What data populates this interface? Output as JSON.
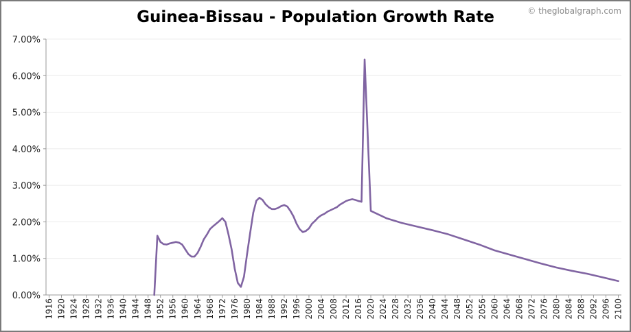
{
  "chart_data": {
    "type": "line",
    "title": "Guinea-Bissau - Population Growth Rate",
    "credit": "© theglobalgraph.com",
    "xlabel": "",
    "ylabel": "",
    "xlim": [
      1915,
      2101
    ],
    "ylim": [
      0,
      7
    ],
    "y_ticks": [
      "0.00%",
      "1.00%",
      "2.00%",
      "3.00%",
      "4.00%",
      "5.00%",
      "6.00%",
      "7.00%"
    ],
    "x_ticks": [
      "1916",
      "1920",
      "1924",
      "1928",
      "1932",
      "1936",
      "1940",
      "1944",
      "1948",
      "1952",
      "1956",
      "1960",
      "1964",
      "1968",
      "1972",
      "1976",
      "1980",
      "1984",
      "1988",
      "1992",
      "1996",
      "2000",
      "2004",
      "2008",
      "2012",
      "2016",
      "2020",
      "2024",
      "2028",
      "2032",
      "2036",
      "2040",
      "2044",
      "2048",
      "2052",
      "2056",
      "2060",
      "2064",
      "2068",
      "2072",
      "2076",
      "2080",
      "2084",
      "2088",
      "2092",
      "2096",
      "2100"
    ],
    "grid": true,
    "line_color": "#8064a2",
    "series": [
      {
        "x": [
          1950,
          1951,
          1952,
          1953,
          1954,
          1955,
          1956,
          1957,
          1958,
          1959,
          1960,
          1961,
          1962,
          1963,
          1964,
          1965,
          1966,
          1967,
          1968,
          1969,
          1970,
          1971,
          1972,
          1973,
          1974,
          1975,
          1976,
          1977,
          1978,
          1979,
          1980,
          1981,
          1982,
          1983,
          1984,
          1985,
          1986,
          1987,
          1988,
          1989,
          1990,
          1991,
          1992,
          1993,
          1994,
          1995,
          1996,
          1997,
          1998,
          1999,
          2000,
          2001,
          2002,
          2003,
          2004,
          2005,
          2006,
          2007,
          2008,
          2009,
          2010,
          2011,
          2012,
          2013,
          2014,
          2015,
          2016,
          2017,
          2018,
          2020,
          2025,
          2030,
          2035,
          2040,
          2045,
          2050,
          2055,
          2060,
          2065,
          2070,
          2075,
          2080,
          2085,
          2090,
          2095,
          2100
        ],
        "y": [
          0.0,
          1.62,
          1.45,
          1.39,
          1.38,
          1.41,
          1.43,
          1.45,
          1.43,
          1.38,
          1.25,
          1.12,
          1.05,
          1.05,
          1.15,
          1.32,
          1.52,
          1.65,
          1.8,
          1.88,
          1.95,
          2.02,
          2.1,
          2.0,
          1.65,
          1.25,
          0.72,
          0.33,
          0.22,
          0.5,
          1.12,
          1.7,
          2.25,
          2.58,
          2.66,
          2.6,
          2.48,
          2.4,
          2.35,
          2.35,
          2.38,
          2.43,
          2.46,
          2.42,
          2.3,
          2.15,
          1.95,
          1.8,
          1.72,
          1.75,
          1.82,
          1.95,
          2.03,
          2.12,
          2.18,
          2.22,
          2.28,
          2.32,
          2.36,
          2.4,
          2.47,
          2.52,
          2.57,
          2.6,
          2.62,
          2.6,
          2.57,
          2.55,
          6.44,
          2.3,
          2.1,
          1.97,
          1.87,
          1.77,
          1.66,
          1.52,
          1.38,
          1.22,
          1.1,
          0.98,
          0.86,
          0.75,
          0.66,
          0.58,
          0.48,
          0.38
        ]
      }
    ]
  }
}
